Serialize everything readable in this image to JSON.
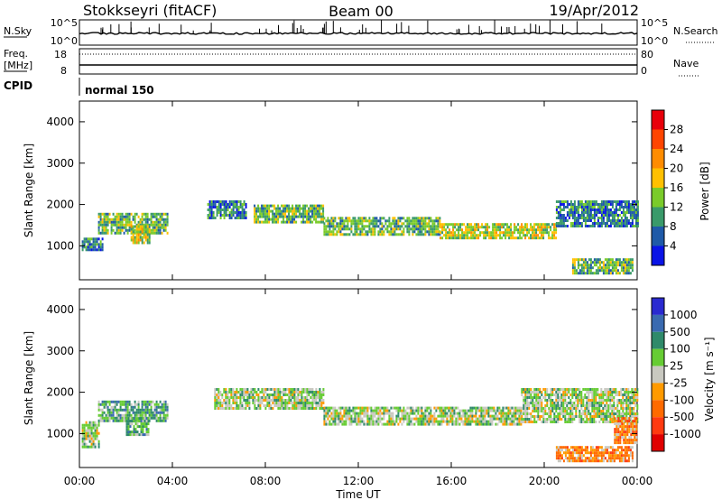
{
  "header": {
    "station": "Stokkseyri (fitACF)",
    "beam": "Beam 00",
    "date": "19/Apr/2012"
  },
  "strip_sky": {
    "left_label": "N.Sky",
    "right_label": "N.Search",
    "left_ticks": [
      "10^5",
      "10^0"
    ],
    "right_ticks": [
      "10^5",
      "10^0"
    ]
  },
  "strip_freq": {
    "left_label": "Freq.",
    "left_unit": "[MHz]",
    "right_label": "Nave",
    "left_ticks": [
      "18",
      "8"
    ],
    "right_ticks": [
      "80",
      "0"
    ]
  },
  "cpid": {
    "label": "CPID",
    "value": "normal 150"
  },
  "power_colorbar": {
    "label": "Power [dB]",
    "ticks": [
      "28",
      "24",
      "20",
      "16",
      "12",
      "8",
      "4"
    ],
    "colors": [
      "#e8000b",
      "#ff4500",
      "#ff8c00",
      "#ffc000",
      "#7acb2a",
      "#3a9a6a",
      "#1f5aa8",
      "#0a14e6"
    ]
  },
  "velocity_colorbar": {
    "label": "Velocity [m s⁻¹]",
    "ticks": [
      "1000",
      "500",
      "100",
      "25",
      "-25",
      "-100",
      "-500",
      "-1000"
    ],
    "colors": [
      "#2a2ad0",
      "#3a6ab0",
      "#2f8a6a",
      "#66cc33",
      "#c8c8c0",
      "#ff9a00",
      "#ff6a00",
      "#ff3a10",
      "#e00000"
    ]
  },
  "chart_data": {
    "type": "heatmap",
    "xlabel": "Time UT",
    "ylabel": "Slant Range [km]",
    "x_ticks": [
      "00:00",
      "04:00",
      "08:00",
      "12:00",
      "16:00",
      "20:00",
      "00:00"
    ],
    "xlim_hours": [
      0,
      24
    ],
    "ylim_km": [
      180,
      4500
    ],
    "y_ticks": [
      1000,
      2000,
      3000,
      4000
    ],
    "panels": [
      {
        "name": "power",
        "echo_regions": [
          {
            "t0": 0.1,
            "t1": 1.0,
            "r0": 900,
            "r1": 1200,
            "level": 2
          },
          {
            "t0": 0.8,
            "t1": 3.8,
            "r0": 1300,
            "r1": 1800,
            "level": 3
          },
          {
            "t0": 2.2,
            "t1": 3.0,
            "r0": 1100,
            "r1": 1500,
            "level": 4
          },
          {
            "t0": 5.5,
            "t1": 7.2,
            "r0": 1700,
            "r1": 2100,
            "level": 2
          },
          {
            "t0": 7.5,
            "t1": 10.5,
            "r0": 1600,
            "r1": 2000,
            "level": 3
          },
          {
            "t0": 10.5,
            "t1": 15.5,
            "r0": 1300,
            "r1": 1700,
            "level": 3
          },
          {
            "t0": 15.5,
            "t1": 20.5,
            "r0": 1200,
            "r1": 1550,
            "level": 4
          },
          {
            "t0": 20.5,
            "t1": 24.0,
            "r0": 1500,
            "r1": 2100,
            "level": 2
          },
          {
            "t0": 21.2,
            "t1": 23.8,
            "r0": 350,
            "r1": 700,
            "level": 3
          }
        ]
      },
      {
        "name": "velocity",
        "echo_regions": [
          {
            "t0": 0.1,
            "t1": 0.8,
            "r0": 700,
            "r1": 1300,
            "level": 4
          },
          {
            "t0": 0.8,
            "t1": 3.8,
            "r0": 1300,
            "r1": 1800,
            "level": 3
          },
          {
            "t0": 2.0,
            "t1": 3.0,
            "r0": 1000,
            "r1": 1400,
            "level": 3
          },
          {
            "t0": 5.8,
            "t1": 10.5,
            "r0": 1600,
            "r1": 2100,
            "level": 4
          },
          {
            "t0": 10.5,
            "t1": 19.0,
            "r0": 1250,
            "r1": 1650,
            "level": 4
          },
          {
            "t0": 19.0,
            "t1": 24.0,
            "r0": 1300,
            "r1": 2100,
            "level": 4
          },
          {
            "t0": 20.5,
            "t1": 23.8,
            "r0": 350,
            "r1": 700,
            "level": 6
          },
          {
            "t0": 23.0,
            "t1": 24.0,
            "r0": 800,
            "r1": 1400,
            "level": 6
          }
        ]
      }
    ]
  }
}
